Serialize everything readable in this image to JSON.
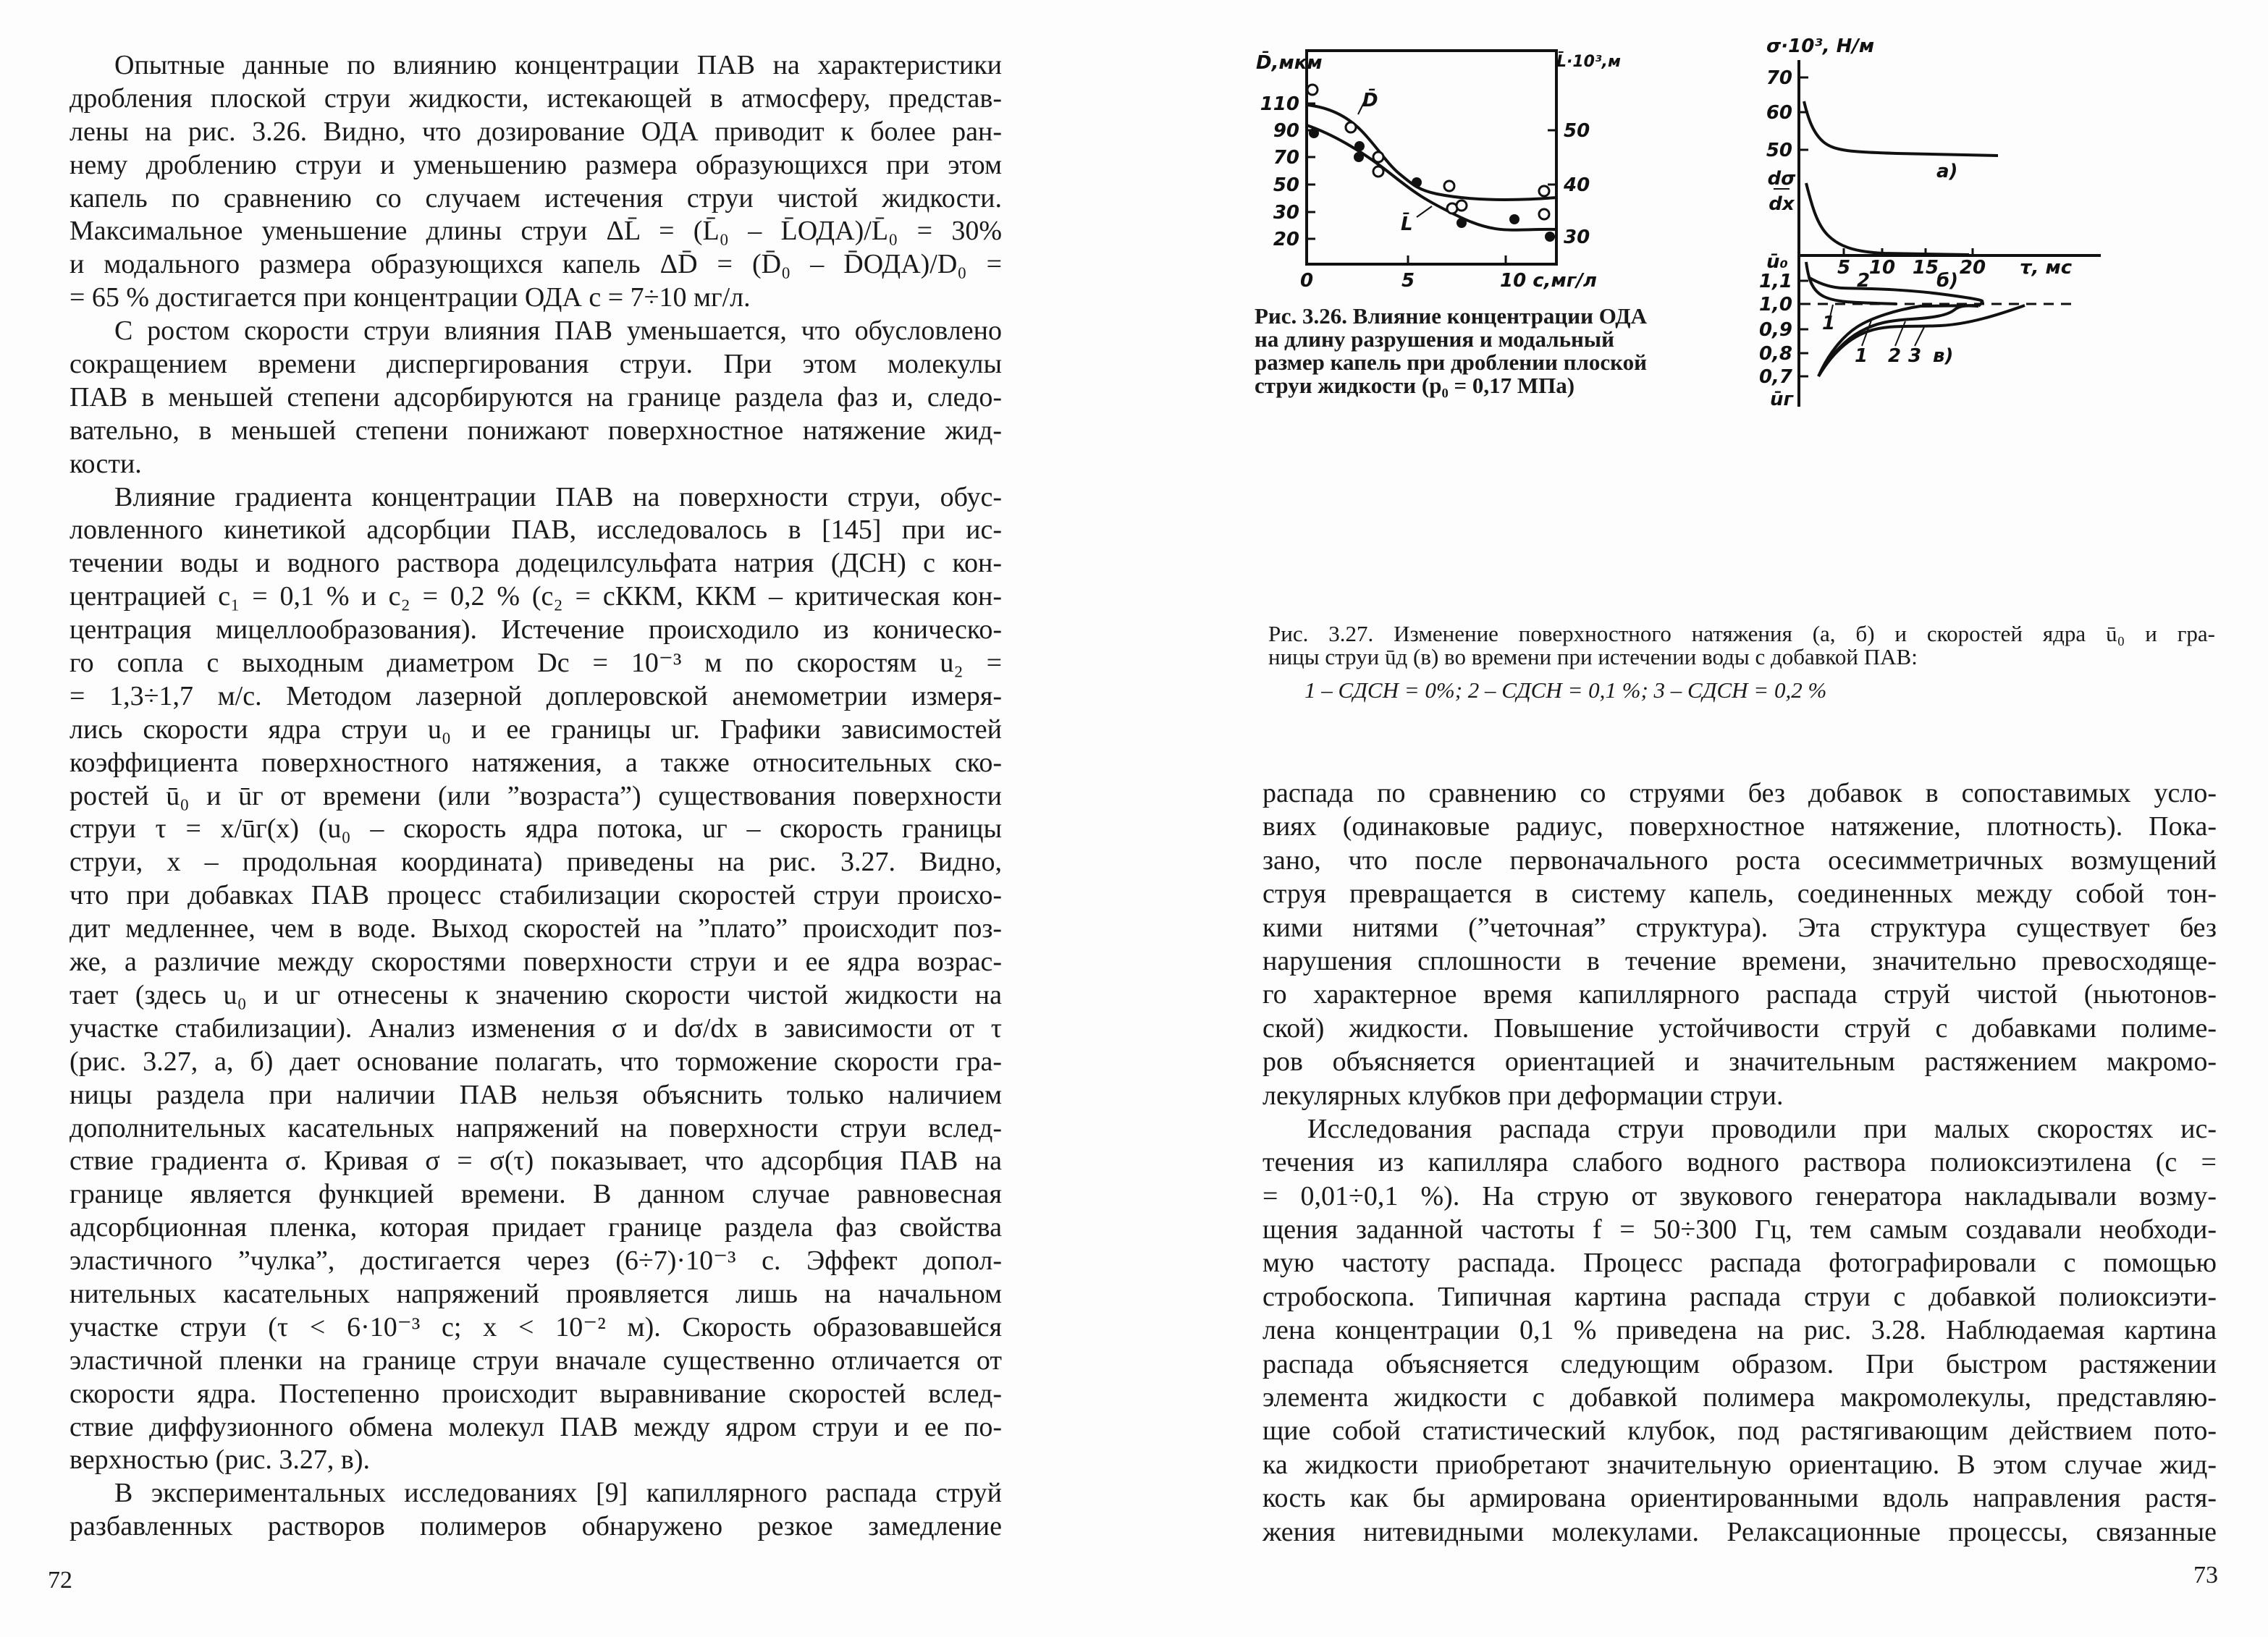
{
  "left_page": {
    "page_number": "72",
    "paragraphs": [
      {
        "lines": [
          "Опытные данные по влиянию концентрации ПАВ на характеристики",
          "дробления плоской струи жидкости, истекающей в атмосферу, представ-",
          "лены на рис. 3.26. Видно, что дозирование ОДА приводит к более ран-",
          "нему дроблению струи и уменьшению размера образующихся при этом",
          "капель по сравнению со случаем истечения струи чистой жидкости.",
          "Максимальное уменьшение длины струи ΔL̄ = (L̄₀ – L̄ОДА)/L̄₀ = 30%",
          "и модального размера образующихся капель ΔD̄ = (D̄₀ – D̄ОДА)/D₀ =",
          "= 65 % достигается при концентрации ОДА  c = 7÷10 мг/л."
        ]
      },
      {
        "lines": [
          "С ростом скорости струи влияния ПАВ уменьшается, что обусловлено",
          "сокращением времени диспергирования струи. При этом молекулы",
          "ПАВ в меньшей степени адсорбируются на границе раздела фаз и, следо-",
          "вательно, в меньшей степени понижают поверхностное натяжение жид-",
          "кости."
        ]
      },
      {
        "lines": [
          "Влияние градиента концентрации ПАВ на поверхности струи, обус-",
          "ловленного кинетикой адсорбции ПАВ, исследовалось в [145] при ис-",
          "течении воды и водного раствора додецилсульфата натрия (ДСН) с кон-",
          "центрацией c₁ = 0,1 % и c₂ = 0,2 % (c₂ = cККМ, ККМ – критическая кон-",
          "центрация мицеллообразования). Истечение происходило из коническо-",
          "го сопла с выходным диаметром Dс = 10⁻³ м по скоростям u₂ =",
          "= 1,3÷1,7 м/с. Методом лазерной доплеровской анемометрии измеря-",
          "лись скорости ядра струи u₀ и ее границы uг. Графики зависимостей",
          "коэффициента поверхностного натяжения, а также относительных ско-",
          "ростей ū₀ и ūг от времени (или ”возраста”) существования поверхности",
          "струи τ = x/ūг(x)  (u₀ – скорость ядра потока, uг – скорость границы",
          "струи, x  – продольная координата) приведены на рис. 3.27. Видно,",
          "что при добавках ПАВ процесс стабилизации скоростей струи происхо-",
          "дит медленнее, чем в воде. Выход скоростей на ”плато” происходит поз-",
          "же, а различие между скоростями поверхности струи и ее ядра возрас-",
          "тает (здесь u₀ и uг отнесены к значению скорости чистой жидкости на",
          "участке стабилизации). Анализ изменения σ и dσ/dx в зависимости от τ",
          "(рис. 3.27, а, б) дает основание полагать, что торможение скорости гра-",
          "ницы раздела при наличии ПАВ нельзя объяснить только наличием",
          "дополнительных касательных напряжений на поверхности струи вслед-",
          "ствие градиента σ. Кривая σ = σ(τ) показывает, что адсорбция ПАВ на",
          "границе является функцией времени. В данном случае равновесная",
          "адсорбционная пленка, которая придает границе раздела фаз свойства",
          "эластичного ”чулка”, достигается через (6÷7)·10⁻³ с. Эффект допол-",
          "нительных касательных напряжений проявляется лишь на начальном",
          "участке струи (τ < 6·10⁻³ с; x < 10⁻² м). Скорость образовавшейся",
          "эластичной пленки на границе струи вначале существенно отличается от",
          "скорости ядра. Постепенно происходит выравнивание скоростей вслед-",
          "ствие диффузионного обмена молекул ПАВ между ядром струи и ее по-",
          "верхностью (рис. 3.27, в)."
        ]
      },
      {
        "continues": true,
        "lines": [
          "В экспериментальных исследованиях [9] капиллярного распада струй",
          "разбавленных растворов полимеров обнаружено резкое замедление"
        ]
      }
    ]
  },
  "right_page": {
    "page_number": "73",
    "paragraphs": [
      {
        "no_indent": true,
        "lines": [
          "распада по сравнению со струями без добавок в сопоставимых усло-",
          "виях (одинаковые радиус, поверхностное натяжение, плотность). Пока-",
          "зано, что после первоначального роста осесимметричных возмущений",
          "струя превращается в систему капель, соединенных между собой тон-",
          "кими нитями (”четочная” структура). Эта структура существует без",
          "нарушения сплошности в течение времени, значительно превосходяще-",
          "го характерное время капиллярного распада струй чистой (ньютонов-",
          "ской) жидкости. Повышение устойчивости струй с добавками полиме-",
          "ров объясняется ориентацией и значительным растяжением макромо-",
          "лекулярных клубков при деформации струи."
        ]
      },
      {
        "continues": true,
        "lines": [
          "Исследования распада струи проводили при малых скоростях ис-",
          "течения из капилляра слабого водного раствора полиоксиэтилена (c =",
          "= 0,01÷0,1 %). На струю от звукового генератора накладывали возму-",
          "щения заданной частоты f = 50÷300 Гц, тем самым создавали необходи-",
          "мую частоту распада. Процесс распада фотографировали с помощью",
          "стробоскопа. Типичная картина распада струи с добавкой полиоксиэти-",
          "лена концентрации 0,1 % приведена на рис. 3.28. Наблюдаемая картина",
          "распада объясняется следующим образом. При быстром растяжении",
          "элемента жидкости с добавкой полимера макромолекулы, представляю-",
          "щие собой статистический клубок, под растягивающим действием пото-",
          "ка жидкости приобретают значительную ориентацию. В этом случае жид-",
          "кость как бы армирована ориентированными вдоль направления растя-",
          "жения нитевидными молекулами. Релаксационные процессы, связанные"
        ]
      }
    ]
  },
  "fig_3_26": {
    "y_left_label": "D̄,мкм",
    "y_right_label": "L̄·10³,м",
    "y_left_ticks": [
      "110",
      "90",
      "70",
      "50",
      "30",
      "20"
    ],
    "y_right_ticks": [
      "50",
      "40",
      "30"
    ],
    "x_ticks": [
      "0",
      "5",
      "10 c,мг/л"
    ],
    "curve_labels": {
      "D": "D̄",
      "L": "L̄"
    },
    "caption": [
      "Рис. 3.26. Влияние концентрации ОДА",
      "на длину разрушения и модальный",
      "размер капель при дроблении плоской",
      "струи жидкости (p₀ = 0,17 МПа)"
    ]
  },
  "fig_3_27": {
    "y_top_label": "σ·10³, Н/м",
    "y_top_ticks": [
      "70",
      "60",
      "50"
    ],
    "derivative_label_num": "dσ",
    "derivative_label_den": "dx",
    "x_ticks": [
      "5",
      "10",
      "15",
      "20"
    ],
    "x_label": "τ, мс",
    "u0_label": "ū₀",
    "ug_label": "ūг",
    "y_bottom_ticks": [
      "1,1",
      "1,0",
      "0,9",
      "0,8",
      "0,7"
    ],
    "panel_labels": {
      "a": "а)",
      "b": "б)",
      "v": "в)"
    },
    "curve_numbers": {
      "top_1": "1",
      "top_2": "2",
      "bottom_1": "1",
      "bottom_2": "2",
      "bottom_3": "3"
    },
    "caption": [
      "Рис. 3.27. Изменение поверхностного натяжения (а, б) и скоростей ядра ū₀ и гра-",
      "ницы струи ūд (в) во времени при истечении воды с добавкой ПАВ:",
      "1 – CДСН = 0%;  2 – CДСН = 0,1 %;  3 – CДСН = 0,2 %"
    ]
  }
}
